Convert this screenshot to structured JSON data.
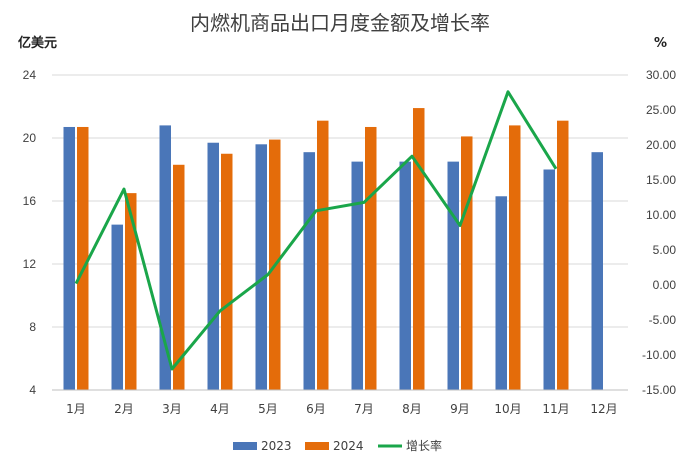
{
  "chart_data": {
    "type": "bar",
    "title": "内燃机商品出口月度金额及增长率",
    "ylabel_left": "亿美元",
    "ylabel_right": "%",
    "categories": [
      "1月",
      "2月",
      "3月",
      "4月",
      "5月",
      "6月",
      "7月",
      "8月",
      "9月",
      "10月",
      "11月",
      "12月"
    ],
    "series": [
      {
        "name": "2023",
        "kind": "bar",
        "axis": "left",
        "color": "#4a76b8",
        "values": [
          20.7,
          14.5,
          20.8,
          19.7,
          19.6,
          19.1,
          18.5,
          18.5,
          18.5,
          16.3,
          18.0,
          19.1
        ]
      },
      {
        "name": "2024",
        "kind": "bar",
        "axis": "left",
        "color": "#e46c0a",
        "values": [
          20.7,
          16.5,
          18.3,
          19.0,
          19.9,
          21.1,
          20.7,
          21.9,
          20.1,
          20.8,
          21.1,
          null
        ]
      },
      {
        "name": "增长率",
        "kind": "line",
        "axis": "right",
        "color": "#1aa64a",
        "values": [
          0.2,
          13.7,
          -12.0,
          -3.7,
          1.5,
          10.6,
          11.8,
          18.4,
          8.5,
          27.6,
          16.6,
          null
        ]
      }
    ],
    "ylim_left": [
      4,
      24
    ],
    "yticks_left": [
      "4",
      "8",
      "12",
      "16",
      "20",
      "24"
    ],
    "ylim_right": [
      -15,
      30
    ],
    "yticks_right": [
      "-15.00",
      "-10.00",
      "-5.00",
      "0.00",
      "5.00",
      "10.00",
      "15.00",
      "20.00",
      "25.00",
      "30.00"
    ],
    "legend": "bottom",
    "grid": true
  }
}
